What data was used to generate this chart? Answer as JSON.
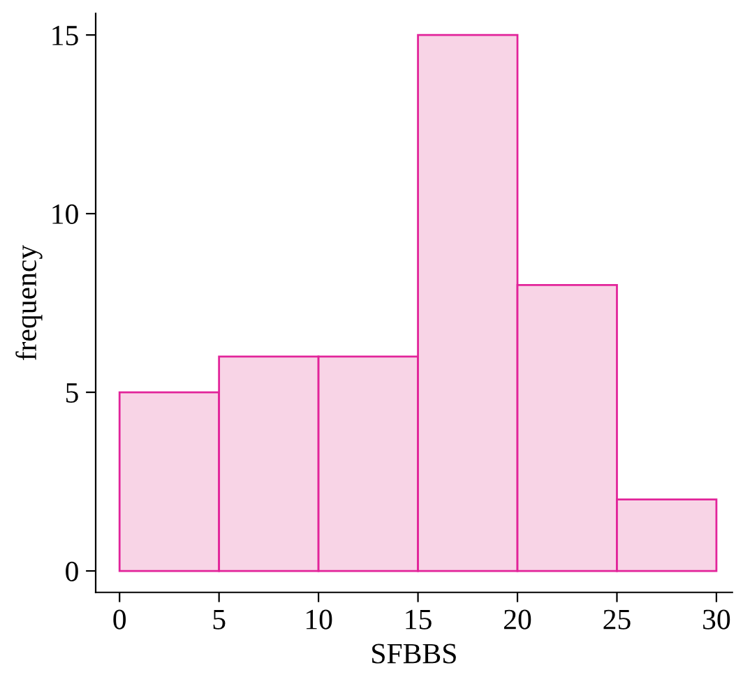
{
  "chart_data": {
    "type": "histogram",
    "xlabel": "SFBBS",
    "ylabel": "frequency",
    "bins": [
      0,
      5,
      10,
      15,
      20,
      25,
      30
    ],
    "values": [
      5,
      6,
      6,
      15,
      8,
      2
    ],
    "color": "#f8d4e6",
    "xlim": [
      -1.2,
      30.8
    ],
    "ylim": [
      -0.6,
      15.6
    ],
    "xticks": [
      0,
      5,
      10,
      15,
      20,
      25,
      30
    ],
    "yticks": [
      0,
      5,
      10,
      15
    ],
    "grid": false,
    "legend": false
  }
}
